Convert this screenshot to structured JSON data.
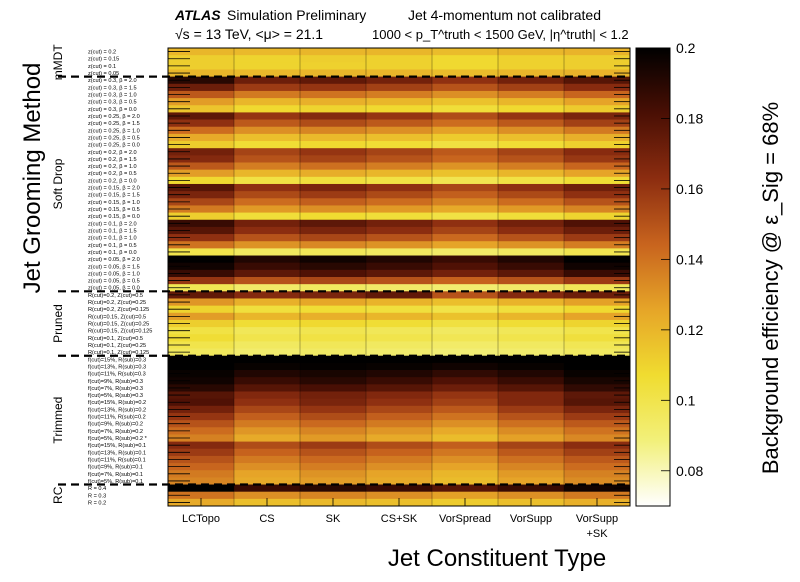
{
  "header": {
    "atlas": "ATLAS",
    "status": "Simulation Preliminary",
    "energy": "√s = 13 TeV, <μ> = 21.1",
    "calib": "Jet 4-momentum not calibrated",
    "kinematics": "1000 < p_T^truth < 1500 GeV, |η^truth| < 1.2"
  },
  "chart_data": {
    "type": "heatmap",
    "xlabel": "Jet Constituent Type",
    "ylabel": "Jet Grooming Method",
    "zlabel": "Background efficiency @ ε_Sig = 68%",
    "zlim": [
      0.07,
      0.2
    ],
    "colorbar_ticks": [
      "0.2",
      "0.18",
      "0.16",
      "0.14",
      "0.12",
      "0.1",
      "0.08"
    ],
    "colormap": [
      "#ffffff",
      "#f2f07a",
      "#f0dc30",
      "#e6a528",
      "#c8641e",
      "#8c2d10",
      "#4a0f04",
      "#000000"
    ],
    "x": [
      "LCTopo",
      "CS",
      "SK",
      "CS+SK",
      "VorSpread",
      "VorSupp",
      "VorSupp +SK"
    ],
    "groups": [
      {
        "name": "mMDT",
        "rows": [
          "z(cut) = 0.2",
          "z(cut) = 0.15",
          "z(cut) = 0.1",
          "z(cut) = 0.05"
        ]
      },
      {
        "name": "Soft Drop",
        "rows": [
          "z(cut) = 0.3, β = 2.0",
          "z(cut) = 0.3, β = 1.5",
          "z(cut) = 0.3, β = 1.0",
          "z(cut) = 0.3, β = 0.5",
          "z(cut) = 0.3, β = 0.0",
          "z(cut) = 0.25, β = 2.0",
          "z(cut) = 0.25, β = 1.5",
          "z(cut) = 0.25, β = 1.0",
          "z(cut) = 0.25, β = 0.5",
          "z(cut) = 0.25, β = 0.0",
          "z(cut) = 0.2, β = 2.0",
          "z(cut) = 0.2, β = 1.5",
          "z(cut) = 0.2, β = 1.0",
          "z(cut) = 0.2, β = 0.5",
          "z(cut) = 0.2, β = 0.0",
          "z(cut) = 0.15, β = 2.0",
          "z(cut) = 0.15, β = 1.5",
          "z(cut) = 0.15, β = 1.0",
          "z(cut) = 0.15, β = 0.5",
          "z(cut) = 0.15, β = 0.0",
          "z(cut) = 0.1, β = 2.0",
          "z(cut) = 0.1, β = 1.5",
          "z(cut) = 0.1, β = 1.0",
          "z(cut) = 0.1, β = 0.5",
          "z(cut) = 0.1, β = 0.0",
          "z(cut) = 0.05, β = 2.0",
          "z(cut) = 0.05, β = 1.5",
          "z(cut) = 0.05, β = 1.0",
          "z(cut) = 0.05, β = 0.5",
          "z(cut) = 0.05, β = 0.0"
        ]
      },
      {
        "name": "Pruned",
        "rows": [
          "R(cut)=0.2, Z(cut)=0.5",
          "R(cut)=0.2, Z(cut)=0.25",
          "R(cut)=0.2, Z(cut)=0.125",
          "R(cut)=0.15, Z(cut)=0.5",
          "R(cut)=0.15, Z(cut)=0.25",
          "R(cut)=0.15, Z(cut)=0.125",
          "R(cut)=0.1, Z(cut)=0.5",
          "R(cut)=0.1, Z(cut)=0.25",
          "R(cut)=0.1, Z(cut)=0.125"
        ]
      },
      {
        "name": "Trimmed",
        "rows": [
          "f(cut)=15%, R(sub)=0.3",
          "f(cut)=13%, R(sub)=0.3",
          "f(cut)=11%, R(sub)=0.3",
          "f(cut)=9%, R(sub)=0.3",
          "f(cut)=7%, R(sub)=0.3",
          "f(cut)=5%, R(sub)=0.3",
          "f(cut)=15%, R(sub)=0.2",
          "f(cut)=13%, R(sub)=0.2",
          "f(cut)=11%, R(sub)=0.2",
          "f(cut)=9%, R(sub)=0.2",
          "f(cut)=7%, R(sub)=0.2",
          "f(cut)=5%, R(sub)=0.2 *",
          "f(cut)=15%, R(sub)=0.1",
          "f(cut)=13%, R(sub)=0.1",
          "f(cut)=11%, R(sub)=0.1",
          "f(cut)=9%, R(sub)=0.1",
          "f(cut)=7%, R(sub)=0.1",
          "f(cut)=5%, R(sub)=0.1"
        ]
      },
      {
        "name": "RC",
        "rows": [
          "R = 0.4",
          "R = 0.3",
          "R = 0.2"
        ]
      }
    ],
    "z": [
      [
        0.12,
        0.119,
        0.12,
        0.12,
        0.118,
        0.12,
        0.121
      ],
      [
        0.112,
        0.11,
        0.112,
        0.111,
        0.108,
        0.111,
        0.112
      ],
      [
        0.112,
        0.11,
        0.111,
        0.111,
        0.108,
        0.111,
        0.112
      ],
      [
        0.12,
        0.119,
        0.12,
        0.12,
        0.118,
        0.12,
        0.121
      ],
      [
        0.19,
        0.172,
        0.175,
        0.17,
        0.162,
        0.17,
        0.178
      ],
      [
        0.172,
        0.158,
        0.16,
        0.156,
        0.15,
        0.156,
        0.164
      ],
      [
        0.148,
        0.138,
        0.14,
        0.137,
        0.132,
        0.137,
        0.144
      ],
      [
        0.128,
        0.12,
        0.122,
        0.12,
        0.116,
        0.12,
        0.126
      ],
      [
        0.115,
        0.108,
        0.11,
        0.108,
        0.105,
        0.108,
        0.113
      ],
      [
        0.176,
        0.16,
        0.165,
        0.16,
        0.152,
        0.16,
        0.168
      ],
      [
        0.162,
        0.148,
        0.152,
        0.148,
        0.142,
        0.148,
        0.156
      ],
      [
        0.142,
        0.132,
        0.135,
        0.132,
        0.127,
        0.132,
        0.138
      ],
      [
        0.124,
        0.117,
        0.119,
        0.117,
        0.113,
        0.117,
        0.122
      ],
      [
        0.113,
        0.106,
        0.108,
        0.106,
        0.103,
        0.106,
        0.111
      ],
      [
        0.17,
        0.155,
        0.16,
        0.155,
        0.148,
        0.155,
        0.164
      ],
      [
        0.165,
        0.15,
        0.155,
        0.15,
        0.144,
        0.15,
        0.159
      ],
      [
        0.148,
        0.137,
        0.141,
        0.137,
        0.131,
        0.137,
        0.144
      ],
      [
        0.128,
        0.12,
        0.123,
        0.12,
        0.116,
        0.12,
        0.126
      ],
      [
        0.108,
        0.102,
        0.104,
        0.102,
        0.099,
        0.102,
        0.106
      ],
      [
        0.178,
        0.162,
        0.168,
        0.162,
        0.154,
        0.162,
        0.171
      ],
      [
        0.168,
        0.153,
        0.158,
        0.153,
        0.146,
        0.153,
        0.162
      ],
      [
        0.154,
        0.142,
        0.146,
        0.142,
        0.136,
        0.142,
        0.15
      ],
      [
        0.138,
        0.129,
        0.132,
        0.129,
        0.124,
        0.129,
        0.135
      ],
      [
        0.112,
        0.105,
        0.107,
        0.105,
        0.102,
        0.105,
        0.11
      ],
      [
        0.186,
        0.17,
        0.176,
        0.17,
        0.162,
        0.17,
        0.18
      ],
      [
        0.178,
        0.163,
        0.168,
        0.163,
        0.155,
        0.163,
        0.172
      ],
      [
        0.162,
        0.15,
        0.154,
        0.15,
        0.143,
        0.15,
        0.158
      ],
      [
        0.14,
        0.131,
        0.134,
        0.131,
        0.126,
        0.131,
        0.137
      ],
      [
        0.1,
        0.095,
        0.097,
        0.095,
        0.093,
        0.095,
        0.099
      ],
      [
        0.2,
        0.192,
        0.196,
        0.192,
        0.186,
        0.192,
        0.2
      ],
      [
        0.196,
        0.186,
        0.19,
        0.186,
        0.18,
        0.186,
        0.196
      ],
      [
        0.186,
        0.176,
        0.18,
        0.176,
        0.17,
        0.176,
        0.186
      ],
      [
        0.16,
        0.15,
        0.154,
        0.15,
        0.145,
        0.15,
        0.158
      ],
      [
        0.098,
        0.093,
        0.095,
        0.093,
        0.091,
        0.093,
        0.097
      ],
      [
        0.175,
        0.165,
        0.168,
        0.175,
        0.15,
        0.165,
        0.172
      ],
      [
        0.13,
        0.122,
        0.125,
        0.121,
        0.117,
        0.121,
        0.127
      ],
      [
        0.11,
        0.104,
        0.106,
        0.104,
        0.101,
        0.104,
        0.108
      ],
      [
        0.128,
        0.12,
        0.122,
        0.12,
        0.116,
        0.12,
        0.126
      ],
      [
        0.112,
        0.106,
        0.108,
        0.106,
        0.103,
        0.106,
        0.11
      ],
      [
        0.102,
        0.097,
        0.099,
        0.097,
        0.095,
        0.097,
        0.1
      ],
      [
        0.106,
        0.1,
        0.102,
        0.1,
        0.098,
        0.1,
        0.104
      ],
      [
        0.1,
        0.095,
        0.097,
        0.095,
        0.093,
        0.095,
        0.098
      ],
      [
        0.096,
        0.092,
        0.094,
        0.092,
        0.09,
        0.092,
        0.095
      ],
      [
        0.2,
        0.2,
        0.2,
        0.2,
        0.2,
        0.2,
        0.2
      ],
      [
        0.2,
        0.198,
        0.199,
        0.198,
        0.196,
        0.198,
        0.2
      ],
      [
        0.198,
        0.192,
        0.194,
        0.192,
        0.188,
        0.192,
        0.198
      ],
      [
        0.196,
        0.186,
        0.19,
        0.186,
        0.18,
        0.186,
        0.194
      ],
      [
        0.19,
        0.178,
        0.182,
        0.178,
        0.172,
        0.178,
        0.188
      ],
      [
        0.178,
        0.166,
        0.17,
        0.166,
        0.16,
        0.166,
        0.176
      ],
      [
        0.18,
        0.162,
        0.168,
        0.162,
        0.156,
        0.166,
        0.178
      ],
      [
        0.17,
        0.154,
        0.16,
        0.154,
        0.148,
        0.158,
        0.168
      ],
      [
        0.16,
        0.146,
        0.152,
        0.146,
        0.14,
        0.15,
        0.158
      ],
      [
        0.15,
        0.138,
        0.143,
        0.138,
        0.132,
        0.141,
        0.148
      ],
      [
        0.142,
        0.13,
        0.135,
        0.13,
        0.124,
        0.133,
        0.14
      ],
      [
        0.136,
        0.124,
        0.129,
        0.124,
        0.118,
        0.127,
        0.134
      ],
      [
        0.165,
        0.152,
        0.158,
        0.152,
        0.146,
        0.155,
        0.163
      ],
      [
        0.158,
        0.145,
        0.15,
        0.145,
        0.139,
        0.148,
        0.156
      ],
      [
        0.15,
        0.138,
        0.143,
        0.138,
        0.132,
        0.141,
        0.148
      ],
      [
        0.144,
        0.132,
        0.137,
        0.132,
        0.126,
        0.135,
        0.142
      ],
      [
        0.138,
        0.126,
        0.131,
        0.126,
        0.12,
        0.129,
        0.136
      ],
      [
        0.135,
        0.124,
        0.128,
        0.124,
        0.118,
        0.126,
        0.133
      ],
      [
        0.2,
        0.186,
        0.19,
        0.186,
        0.178,
        0.186,
        0.196
      ],
      [
        0.14,
        0.132,
        0.135,
        0.132,
        0.127,
        0.132,
        0.138
      ],
      [
        0.124,
        0.117,
        0.119,
        0.117,
        0.113,
        0.117,
        0.122
      ]
    ]
  }
}
